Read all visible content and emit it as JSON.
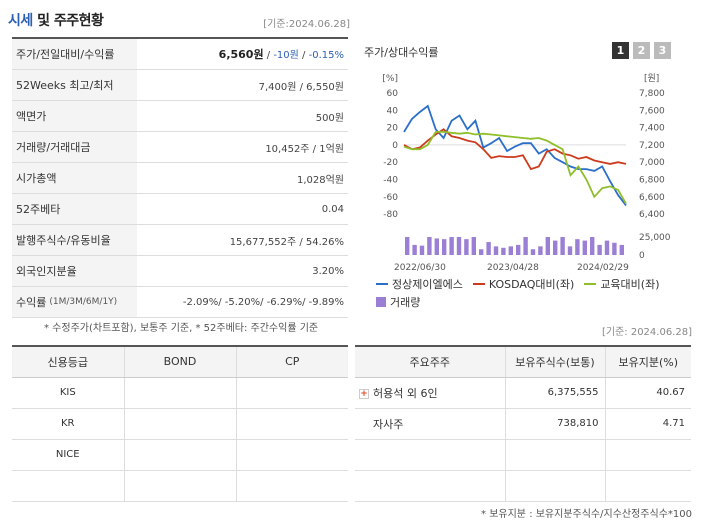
{
  "header": {
    "title_a": "시세",
    "title_b": " 및 주주현황",
    "date": "[기준:2024.06.28]"
  },
  "summary": [
    {
      "label": "주가/전일대비/수익률",
      "price": "6,560원",
      "sep1": " / ",
      "change": "-10원",
      "sep2": " / ",
      "rate": "-0.15%"
    },
    {
      "label": "52Weeks 최고/최저",
      "value": "7,400원 / 6,550원"
    },
    {
      "label": "액면가",
      "value": "500원"
    },
    {
      "label": "거래량/거래대금",
      "value": "10,452주 / 1억원"
    },
    {
      "label": "시가총액",
      "value": "1,028억원"
    },
    {
      "label": "52주베타",
      "value": "0.04"
    },
    {
      "label": "발행주식수/유동비율",
      "value": "15,677,552주 / 54.26%"
    },
    {
      "label": "외국인지분율",
      "value": "3.20%"
    },
    {
      "label": "수익률",
      "label_sm": "(1M/3M/6M/1Y)",
      "value": "-2.09%/ -5.20%/ -6.29%/ -9.89%"
    }
  ],
  "footnote1": "* 수정주가(차트포함), 보통주 기준, * 52주베타: 주간수익률 기준",
  "date2": "[기준: 2024.06.28]",
  "chart_title": "주가/상대수익률",
  "chart_tabs": [
    "1",
    "2",
    "3"
  ],
  "colors": {
    "stock": "#2b6fc8",
    "kosdaq": "#cc3b1d",
    "edu": "#8fbf2a",
    "volume": "#9b7fd4",
    "accent": "#2b5fb4"
  },
  "chart_data": {
    "type": "line",
    "left_unit": "[%]",
    "right_unit": "[원]",
    "left_ticks": [
      "60",
      "40",
      "20",
      "0",
      "-20",
      "-40",
      "-60",
      "-80"
    ],
    "right_ticks": [
      "7,800",
      "7,600",
      "7,400",
      "7,200",
      "7,000",
      "6,800",
      "6,600",
      "6,400"
    ],
    "volume_tick": "25,000",
    "volume_base": "0",
    "x_ticks": [
      "2022/06/30",
      "2023/04/28",
      "2024/02/29"
    ],
    "series": [
      {
        "name": "정상제이엘에스",
        "values": [
          15,
          30,
          38,
          45,
          18,
          8,
          28,
          34,
          18,
          28,
          -3,
          2,
          8,
          -7,
          -2,
          2,
          2,
          -10,
          -5,
          -15,
          -20,
          -25,
          -28,
          -28,
          -30,
          -25,
          -42,
          -58,
          -70
        ]
      },
      {
        "name": "KOSDAQ대비(좌)",
        "values": [
          0,
          -5,
          -3,
          5,
          12,
          18,
          10,
          8,
          5,
          3,
          -5,
          -15,
          -13,
          -14,
          -14,
          -12,
          -28,
          -25,
          -8,
          -5,
          -10,
          -12,
          -16,
          -14,
          -18,
          -20,
          -22,
          -20,
          -22
        ]
      },
      {
        "name": "교육대비(좌)",
        "values": [
          -2,
          -5,
          -5,
          0,
          15,
          15,
          14,
          13,
          14,
          12,
          13,
          12,
          11,
          10,
          9,
          8,
          7,
          8,
          5,
          0,
          -5,
          -35,
          -25,
          -40,
          -60,
          -50,
          -48,
          -52,
          -68
        ]
      }
    ],
    "volume": {
      "name": "거래량",
      "values": [
        30,
        14,
        13,
        30,
        23,
        22,
        27,
        28,
        22,
        30,
        8,
        18,
        12,
        10,
        12,
        14,
        62,
        8,
        12,
        30,
        20,
        25,
        12,
        22,
        20,
        58,
        14,
        20,
        17,
        14
      ]
    }
  },
  "credit": {
    "headers": [
      "신용등급",
      "BOND",
      "CP"
    ],
    "rows": [
      [
        "KIS",
        "",
        ""
      ],
      [
        "KR",
        "",
        ""
      ],
      [
        "NICE",
        "",
        ""
      ],
      [
        "",
        "",
        ""
      ]
    ]
  },
  "holders": {
    "headers": [
      "주요주주",
      "보유주식수(보통)",
      "보유지분(%)"
    ],
    "rows": [
      {
        "name": "허용석 외 6인",
        "shares": "6,375,555",
        "pct": "40.67",
        "expand": "+"
      },
      {
        "name": "자사주",
        "shares": "738,810",
        "pct": "4.71"
      },
      {
        "name": "",
        "shares": "",
        "pct": ""
      },
      {
        "name": "",
        "shares": "",
        "pct": ""
      }
    ]
  },
  "footnote3": "* 보유지분 : 보유지분주식수/지수산정주식수*100"
}
